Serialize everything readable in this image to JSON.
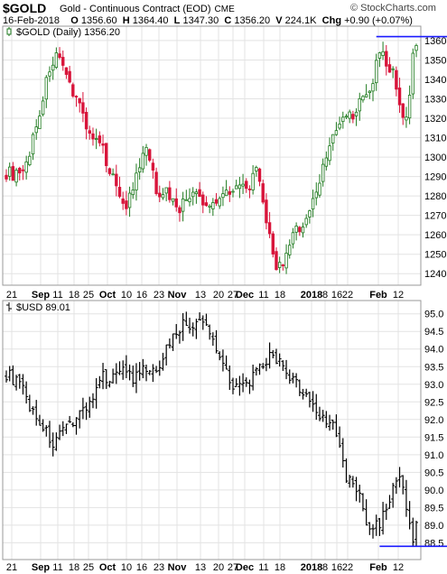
{
  "header": {
    "symbol": "$GOLD",
    "description": "Gold - Continuous Contract (EOD)",
    "exchange": "CME",
    "brand": "© StockCharts.com",
    "quote": {
      "date": "16-Feb-2018",
      "open_label": "O",
      "open": "1356.60",
      "high_label": "H",
      "high": "1364.40",
      "low_label": "L",
      "low": "1347.30",
      "close_label": "C",
      "close": "1356.20",
      "volume_label": "V",
      "volume": "224.1K",
      "change_label": "Chg",
      "change": "+0.90 (+0.07%)"
    }
  },
  "colors": {
    "up": "#1e7a1e",
    "down": "#d8143a",
    "usd_bar": "#000000",
    "trendline": "#1a1aff",
    "grid": "#e3e3e3",
    "frame": "#999999"
  },
  "chart_data": [
    {
      "type": "candlestick",
      "legend": "$GOLD (Daily) 1356.20",
      "ylim": [
        1235,
        1366
      ],
      "yticks": [
        1240,
        1250,
        1260,
        1270,
        1280,
        1290,
        1300,
        1310,
        1320,
        1330,
        1340,
        1350,
        1360
      ],
      "xticks": [
        "21",
        "Sep",
        "11",
        "18",
        "25",
        "Oct",
        "10",
        "16",
        "23",
        "Nov",
        "13",
        "20",
        "27",
        "Dec",
        "11",
        "18",
        "2018",
        "8",
        "16",
        "22",
        "Feb",
        "12"
      ],
      "bold_xticks": [
        "Sep",
        "Oct",
        "Nov",
        "Dec",
        "2018",
        "Feb"
      ],
      "x_count": 124,
      "key_closes": [
        {
          "x": 0,
          "y": 1292
        },
        {
          "x": 5,
          "y": 1290
        },
        {
          "x": 10,
          "y": 1323
        },
        {
          "x": 13,
          "y": 1346
        },
        {
          "x": 15,
          "y": 1352
        },
        {
          "x": 18,
          "y": 1340
        },
        {
          "x": 21,
          "y": 1332
        },
        {
          "x": 25,
          "y": 1312
        },
        {
          "x": 29,
          "y": 1303
        },
        {
          "x": 33,
          "y": 1285
        },
        {
          "x": 36,
          "y": 1275
        },
        {
          "x": 39,
          "y": 1289
        },
        {
          "x": 42,
          "y": 1305
        },
        {
          "x": 45,
          "y": 1283
        },
        {
          "x": 48,
          "y": 1282
        },
        {
          "x": 52,
          "y": 1274
        },
        {
          "x": 56,
          "y": 1282
        },
        {
          "x": 60,
          "y": 1274
        },
        {
          "x": 64,
          "y": 1280
        },
        {
          "x": 68,
          "y": 1285
        },
        {
          "x": 72,
          "y": 1283
        },
        {
          "x": 75,
          "y": 1292
        },
        {
          "x": 77,
          "y": 1277
        },
        {
          "x": 79,
          "y": 1258
        },
        {
          "x": 81,
          "y": 1245
        },
        {
          "x": 83,
          "y": 1242
        },
        {
          "x": 85,
          "y": 1255
        },
        {
          "x": 87,
          "y": 1262
        },
        {
          "x": 90,
          "y": 1268
        },
        {
          "x": 93,
          "y": 1282
        },
        {
          "x": 96,
          "y": 1302
        },
        {
          "x": 99,
          "y": 1313
        },
        {
          "x": 102,
          "y": 1322
        },
        {
          "x": 104,
          "y": 1320
        },
        {
          "x": 106,
          "y": 1328
        },
        {
          "x": 108,
          "y": 1332
        },
        {
          "x": 110,
          "y": 1338
        },
        {
          "x": 112,
          "y": 1357
        },
        {
          "x": 114,
          "y": 1348
        },
        {
          "x": 116,
          "y": 1343
        },
        {
          "x": 117,
          "y": 1333
        },
        {
          "x": 119,
          "y": 1318
        },
        {
          "x": 121,
          "y": 1329
        },
        {
          "x": 122,
          "y": 1355
        },
        {
          "x": 123,
          "y": 1356
        }
      ],
      "trendline": {
        "from": {
          "x": 111,
          "y": 1362
        },
        "to": {
          "x": 134,
          "y": 1362
        }
      }
    },
    {
      "type": "ohlc",
      "legend": "$USD 89.01",
      "ylim": [
        88.1,
        95.3
      ],
      "yticks": [
        88.5,
        89.0,
        89.5,
        90.0,
        90.5,
        91.0,
        91.5,
        92.0,
        92.5,
        93.0,
        93.5,
        94.0,
        94.5,
        95.0
      ],
      "xticks": [
        "21",
        "Sep",
        "11",
        "18",
        "25",
        "Oct",
        "10",
        "16",
        "23",
        "Nov",
        "13",
        "20",
        "27",
        "Dec",
        "11",
        "18",
        "2018",
        "8",
        "16",
        "22",
        "Feb",
        "12"
      ],
      "bold_xticks": [
        "Sep",
        "Oct",
        "Nov",
        "Dec",
        "2018",
        "Feb"
      ],
      "x_count": 124,
      "key_closes": [
        {
          "x": 0,
          "y": 93.3
        },
        {
          "x": 4,
          "y": 93.0
        },
        {
          "x": 8,
          "y": 92.2
        },
        {
          "x": 11,
          "y": 91.8
        },
        {
          "x": 14,
          "y": 91.3
        },
        {
          "x": 17,
          "y": 91.6
        },
        {
          "x": 20,
          "y": 92.0
        },
        {
          "x": 23,
          "y": 92.3
        },
        {
          "x": 26,
          "y": 92.6
        },
        {
          "x": 29,
          "y": 93.2
        },
        {
          "x": 32,
          "y": 93.2
        },
        {
          "x": 35,
          "y": 93.6
        },
        {
          "x": 38,
          "y": 93.1
        },
        {
          "x": 41,
          "y": 93.4
        },
        {
          "x": 44,
          "y": 93.3
        },
        {
          "x": 47,
          "y": 93.8
        },
        {
          "x": 50,
          "y": 94.4
        },
        {
          "x": 53,
          "y": 94.7
        },
        {
          "x": 56,
          "y": 94.6
        },
        {
          "x": 59,
          "y": 94.8
        },
        {
          "x": 62,
          "y": 94.3
        },
        {
          "x": 65,
          "y": 93.6
        },
        {
          "x": 68,
          "y": 93.0
        },
        {
          "x": 71,
          "y": 92.9
        },
        {
          "x": 74,
          "y": 93.2
        },
        {
          "x": 77,
          "y": 93.5
        },
        {
          "x": 80,
          "y": 93.9
        },
        {
          "x": 82,
          "y": 93.6
        },
        {
          "x": 84,
          "y": 93.2
        },
        {
          "x": 87,
          "y": 93.0
        },
        {
          "x": 90,
          "y": 92.7
        },
        {
          "x": 93,
          "y": 92.2
        },
        {
          "x": 96,
          "y": 92.0
        },
        {
          "x": 98,
          "y": 91.8
        },
        {
          "x": 100,
          "y": 91.2
        },
        {
          "x": 102,
          "y": 90.3
        },
        {
          "x": 104,
          "y": 90.2
        },
        {
          "x": 106,
          "y": 89.8
        },
        {
          "x": 108,
          "y": 89.0
        },
        {
          "x": 110,
          "y": 88.9
        },
        {
          "x": 112,
          "y": 89.1
        },
        {
          "x": 114,
          "y": 89.5
        },
        {
          "x": 116,
          "y": 90.0
        },
        {
          "x": 118,
          "y": 90.3
        },
        {
          "x": 120,
          "y": 89.6
        },
        {
          "x": 121,
          "y": 88.9
        },
        {
          "x": 122,
          "y": 88.6
        },
        {
          "x": 123,
          "y": 89.0
        }
      ],
      "trendline": {
        "from": {
          "x": 112,
          "y": 88.4
        },
        "to": {
          "x": 137,
          "y": 88.4
        }
      }
    }
  ]
}
